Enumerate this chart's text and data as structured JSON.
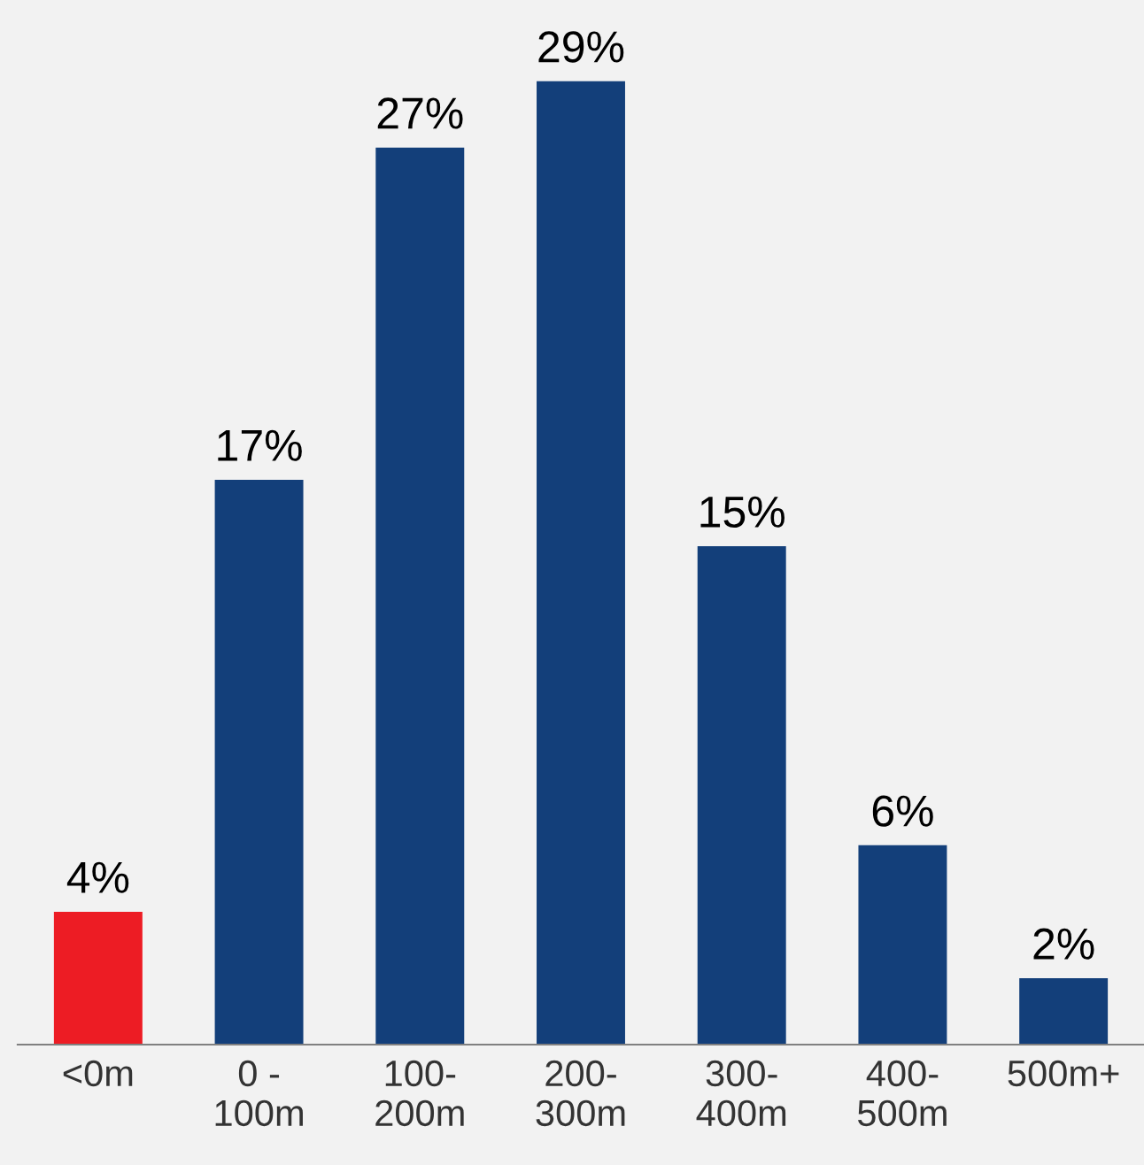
{
  "chart_data": {
    "type": "bar",
    "categories": [
      "<0m",
      "0 -\n100m",
      "100-\n200m",
      "200-\n300m",
      "300-\n400m",
      "400-\n500m",
      "500m+"
    ],
    "values": [
      4,
      17,
      27,
      29,
      15,
      6,
      2
    ],
    "colors": [
      "#ed1c24",
      "#133f7a",
      "#133f7a",
      "#133f7a",
      "#133f7a",
      "#133f7a",
      "#133f7a"
    ],
    "value_labels": [
      "4%",
      "17%",
      "27%",
      "29%",
      "15%",
      "6%",
      "2%"
    ],
    "grid": false,
    "legend": false
  }
}
